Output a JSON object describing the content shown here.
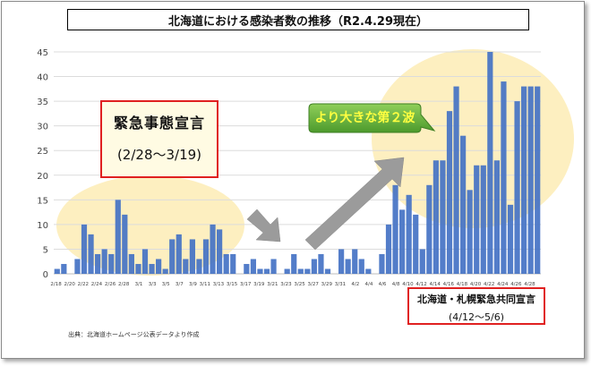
{
  "title": "北海道における感染者数の推移（R2.4.29現在）",
  "annotations": {
    "emergency_title": "緊急事態宣言",
    "emergency_period": "(2/28～3/19)",
    "joint_title": "北海道・札幌緊急共同宣言",
    "joint_period": "(4/12～5/6)",
    "second_wave": "より大きな第２波",
    "source": "出典：北海道ホームページ公表データより作成"
  },
  "colors": {
    "bar": "#4472c4",
    "highlight_fill": "#fdebb0",
    "callout_green": "#5ea83a",
    "arrow_gray": "#9b9b9b",
    "border_red": "#e02020"
  },
  "chart_data": {
    "type": "bar",
    "ylim": [
      0,
      45
    ],
    "yticks": [
      0,
      5,
      10,
      15,
      20,
      25,
      30,
      35,
      40,
      45
    ],
    "grid": true,
    "xtick_labels": [
      "2/18",
      "2/20",
      "2/22",
      "2/24",
      "2/26",
      "2/28",
      "3/1",
      "3/3",
      "3/5",
      "3/7",
      "3/9",
      "3/11",
      "3/13",
      "3/15",
      "3/17",
      "3/19",
      "3/21",
      "3/23",
      "3/25",
      "3/27",
      "3/29",
      "3/31",
      "4/2",
      "4/4",
      "4/6",
      "4/8",
      "4/10",
      "4/12",
      "4/14",
      "4/16",
      "4/18",
      "4/20",
      "4/22",
      "4/24",
      "4/26",
      "4/28"
    ],
    "categories": [
      "2/18",
      "2/19",
      "2/20",
      "2/21",
      "2/22",
      "2/23",
      "2/24",
      "2/25",
      "2/26",
      "2/27",
      "2/28",
      "2/29",
      "3/1",
      "3/2",
      "3/3",
      "3/4",
      "3/5",
      "3/6",
      "3/7",
      "3/8",
      "3/9",
      "3/10",
      "3/11",
      "3/12",
      "3/13",
      "3/14",
      "3/15",
      "3/16",
      "3/17",
      "3/18",
      "3/19",
      "3/20",
      "3/21",
      "3/22",
      "3/23",
      "3/24",
      "3/25",
      "3/26",
      "3/27",
      "3/28",
      "3/29",
      "3/30",
      "3/31",
      "4/1",
      "4/2",
      "4/3",
      "4/4",
      "4/5",
      "4/6",
      "4/7",
      "4/8",
      "4/9",
      "4/10",
      "4/11",
      "4/12",
      "4/13",
      "4/14",
      "4/15",
      "4/16",
      "4/17",
      "4/18",
      "4/19",
      "4/20",
      "4/21",
      "4/22",
      "4/23",
      "4/24",
      "4/25",
      "4/26",
      "4/27",
      "4/28",
      "4/29"
    ],
    "values": [
      1,
      2,
      0,
      3,
      10,
      8,
      4,
      5,
      4,
      15,
      12,
      4,
      2,
      5,
      2,
      3,
      1,
      7,
      8,
      3,
      7,
      3,
      7,
      10,
      9,
      4,
      4,
      0,
      2,
      3,
      1,
      1,
      3,
      0,
      1,
      4,
      1,
      1,
      3,
      4,
      1,
      0,
      5,
      3,
      5,
      3,
      1,
      0,
      4,
      10,
      18,
      13,
      16,
      12,
      5,
      18,
      23,
      23,
      33,
      38,
      28,
      17,
      22,
      22,
      45,
      23,
      39,
      14,
      35,
      38,
      38,
      38
    ]
  }
}
